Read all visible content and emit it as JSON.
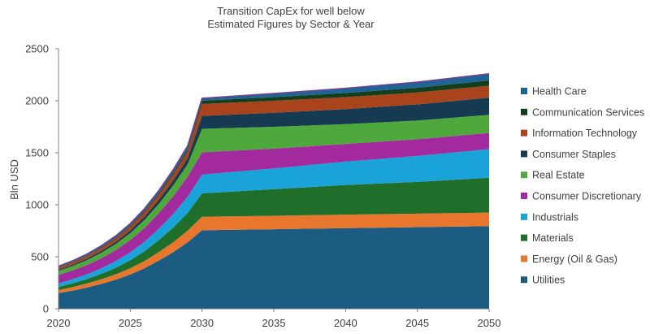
{
  "chart_data": {
    "type": "area",
    "stacked": true,
    "title": [
      "Transition CapEx for well below",
      "Estimated Figures by Sector & Year"
    ],
    "xlabel": "",
    "ylabel": "Bln USD",
    "xlim": [
      2020,
      2050
    ],
    "ylim": [
      0,
      2500
    ],
    "x_ticks": [
      2020,
      2025,
      2030,
      2035,
      2040,
      2045,
      2050
    ],
    "y_ticks": [
      0,
      500,
      1000,
      1500,
      2000,
      2500
    ],
    "x": [
      2020,
      2021,
      2022,
      2023,
      2024,
      2025,
      2026,
      2027,
      2028,
      2029,
      2030,
      2035,
      2040,
      2045,
      2050
    ],
    "legend_position": "right",
    "series": [
      {
        "name": "Utilities",
        "color": "#1d5c82",
        "values": [
          150,
          175,
          205,
          240,
          280,
          330,
          390,
          465,
          545,
          640,
          755,
          765,
          775,
          785,
          795
        ]
      },
      {
        "name": "Energy (Oil & Gas)",
        "color": "#e8762d",
        "values": [
          30,
          34,
          39,
          45,
          52,
          60,
          70,
          82,
          96,
          112,
          130,
          130,
          130,
          130,
          130
        ]
      },
      {
        "name": "Materials",
        "color": "#1f6f2a",
        "values": [
          30,
          36,
          43,
          52,
          63,
          77,
          94,
          115,
          140,
          170,
          225,
          255,
          285,
          305,
          335
        ]
      },
      {
        "name": "Industrials",
        "color": "#1aa3d9",
        "values": [
          35,
          40,
          46,
          54,
          64,
          76,
          91,
          109,
          131,
          157,
          180,
          200,
          225,
          250,
          275
        ]
      },
      {
        "name": "Consumer Discretionary",
        "color": "#a3299e",
        "values": [
          80,
          84,
          89,
          96,
          105,
          117,
          132,
          150,
          171,
          192,
          215,
          190,
          170,
          160,
          155
        ]
      },
      {
        "name": "Real Estate",
        "color": "#4ea83b",
        "values": [
          40,
          43,
          47,
          53,
          60,
          68,
          78,
          90,
          105,
          120,
          225,
          210,
          190,
          180,
          175
        ]
      },
      {
        "name": "Consumer Staples",
        "color": "#163a52",
        "values": [
          10,
          12,
          14,
          17,
          21,
          26,
          32,
          39,
          47,
          56,
          125,
          135,
          145,
          155,
          165
        ]
      },
      {
        "name": "Information Technology",
        "color": "#a8431c",
        "values": [
          20,
          22,
          25,
          28,
          32,
          37,
          43,
          50,
          58,
          67,
          115,
          115,
          115,
          115,
          115
        ]
      },
      {
        "name": "Communication Services",
        "color": "#123e1c",
        "values": [
          3,
          4,
          5,
          6,
          7,
          8,
          10,
          12,
          14,
          16,
          30,
          35,
          40,
          45,
          50
        ]
      },
      {
        "name": "Health Care",
        "color": "#1f6496",
        "values": [
          12,
          13,
          15,
          17,
          19,
          21,
          25,
          28,
          33,
          38,
          25,
          35,
          45,
          55,
          65
        ]
      }
    ],
    "legend_order": [
      "Health Care",
      "Communication Services",
      "Information Technology",
      "Consumer Staples",
      "Real Estate",
      "Consumer Discretionary",
      "Industrials",
      "Materials",
      "Energy (Oil & Gas)",
      "Utilities"
    ],
    "outline_color": "#7a3e8c"
  }
}
